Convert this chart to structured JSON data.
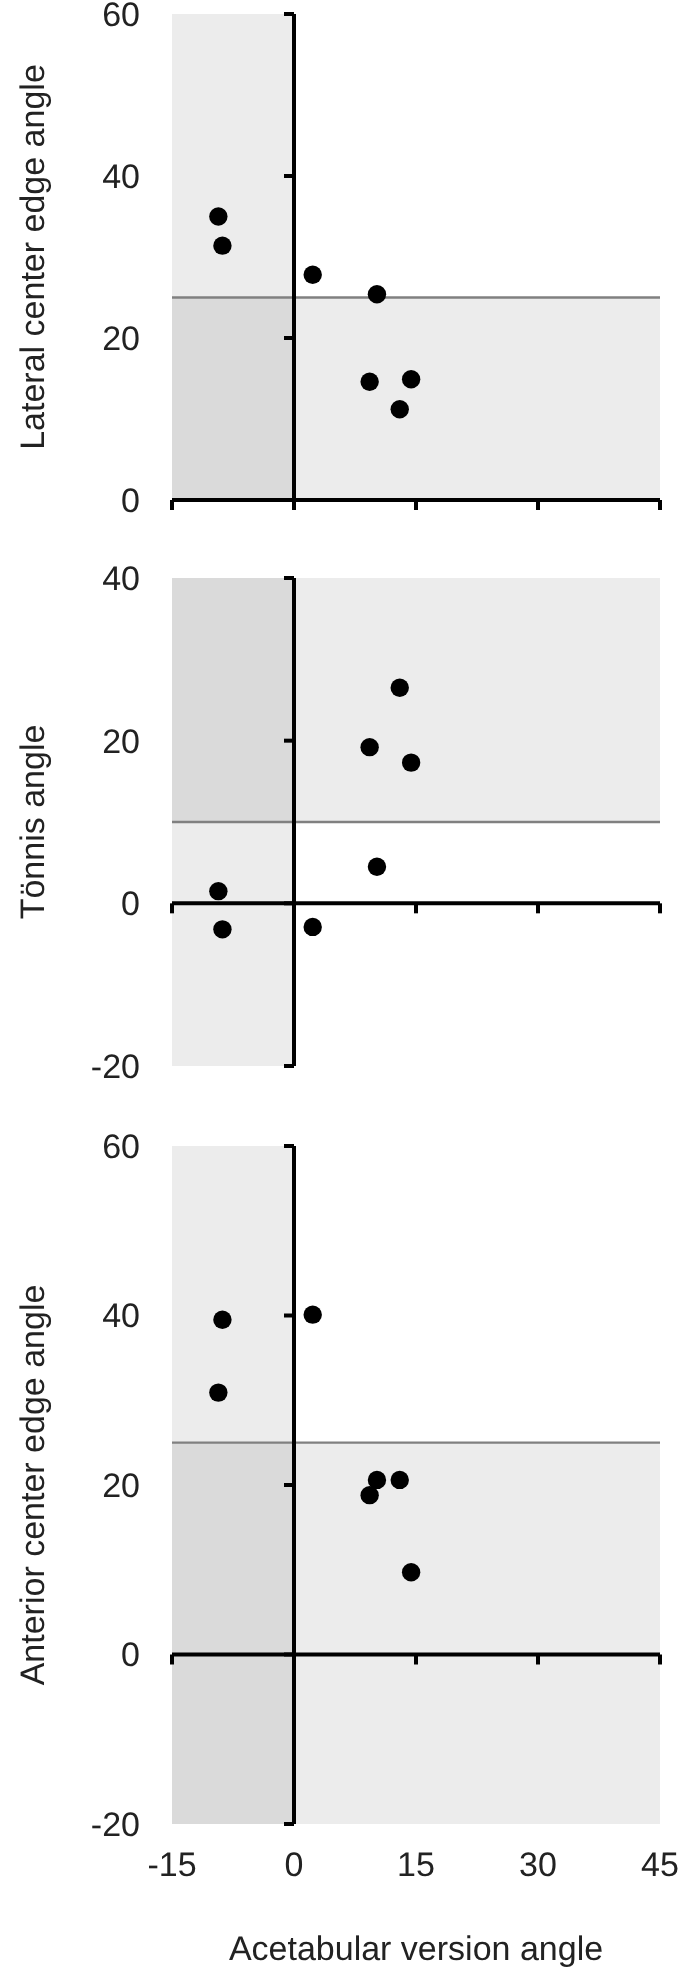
{
  "chart_data": [
    {
      "type": "scatter",
      "ylabel": "Lateral center edge angle",
      "x": [
        -9.3,
        -8.8,
        2.3,
        10.2,
        9.3,
        14.4,
        13
      ],
      "values": [
        35,
        31.4,
        27.8,
        25.4,
        14.6,
        14.9,
        11.2
      ],
      "color": "#000000",
      "marker": "circle",
      "xlim": [
        -15,
        45
      ],
      "xticks": [
        -15,
        0,
        15,
        30,
        45
      ],
      "ylim": [
        0,
        60
      ],
      "yticks": [
        0,
        20,
        40,
        60
      ],
      "tick_labels": "y",
      "bands": [
        {
          "axis": "x",
          "from": -15,
          "to": 0,
          "color": "#ececec"
        },
        {
          "axis": "y",
          "from": 0,
          "to": 25,
          "color": "#ececec"
        }
      ],
      "ref_lines": [
        {
          "axis": "y",
          "value": 25,
          "color": "#808080"
        }
      ]
    },
    {
      "type": "scatter",
      "ylabel": "Tönnis angle",
      "x": [
        -9.3,
        -8.8,
        2.3,
        10.2,
        9.3,
        14.4,
        13
      ],
      "values": [
        1.5,
        -3.2,
        -2.9,
        4.5,
        19.2,
        17.3,
        26.5
      ],
      "color": "#000000",
      "marker": "circle",
      "xlim": [
        -15,
        45
      ],
      "xticks": [
        -15,
        0,
        15,
        30,
        45
      ],
      "ylim": [
        -20,
        40
      ],
      "yticks": [
        -20,
        0,
        20,
        40
      ],
      "tick_labels": "y",
      "bands": [
        {
          "axis": "x",
          "from": -15,
          "to": 0,
          "color": "#ececec"
        },
        {
          "axis": "y",
          "from": 10,
          "to": 40,
          "color": "#ececec"
        }
      ],
      "ref_lines": [
        {
          "axis": "y",
          "value": 10,
          "color": "#808080"
        }
      ]
    },
    {
      "type": "scatter",
      "ylabel": "Anterior center edge angle",
      "xlabel": "Acetabular version angle",
      "x": [
        -8.8,
        -9.3,
        2.3,
        10.2,
        9.3,
        13,
        14.4
      ],
      "values": [
        39.5,
        30.9,
        40.1,
        20.6,
        18.8,
        20.6,
        9.7
      ],
      "color": "#000000",
      "marker": "circle",
      "xlim": [
        -15,
        45
      ],
      "xticks": [
        -15,
        0,
        15,
        30,
        45
      ],
      "ylim": [
        -20,
        60
      ],
      "yticks": [
        -20,
        0,
        20,
        40,
        60
      ],
      "bands": [
        {
          "axis": "x",
          "from": -15,
          "to": 0,
          "color": "#ececec"
        },
        {
          "axis": "y",
          "from": -20,
          "to": 25,
          "color": "#ececec"
        }
      ],
      "ref_lines": [
        {
          "axis": "y",
          "value": 25,
          "color": "#808080"
        }
      ]
    }
  ]
}
